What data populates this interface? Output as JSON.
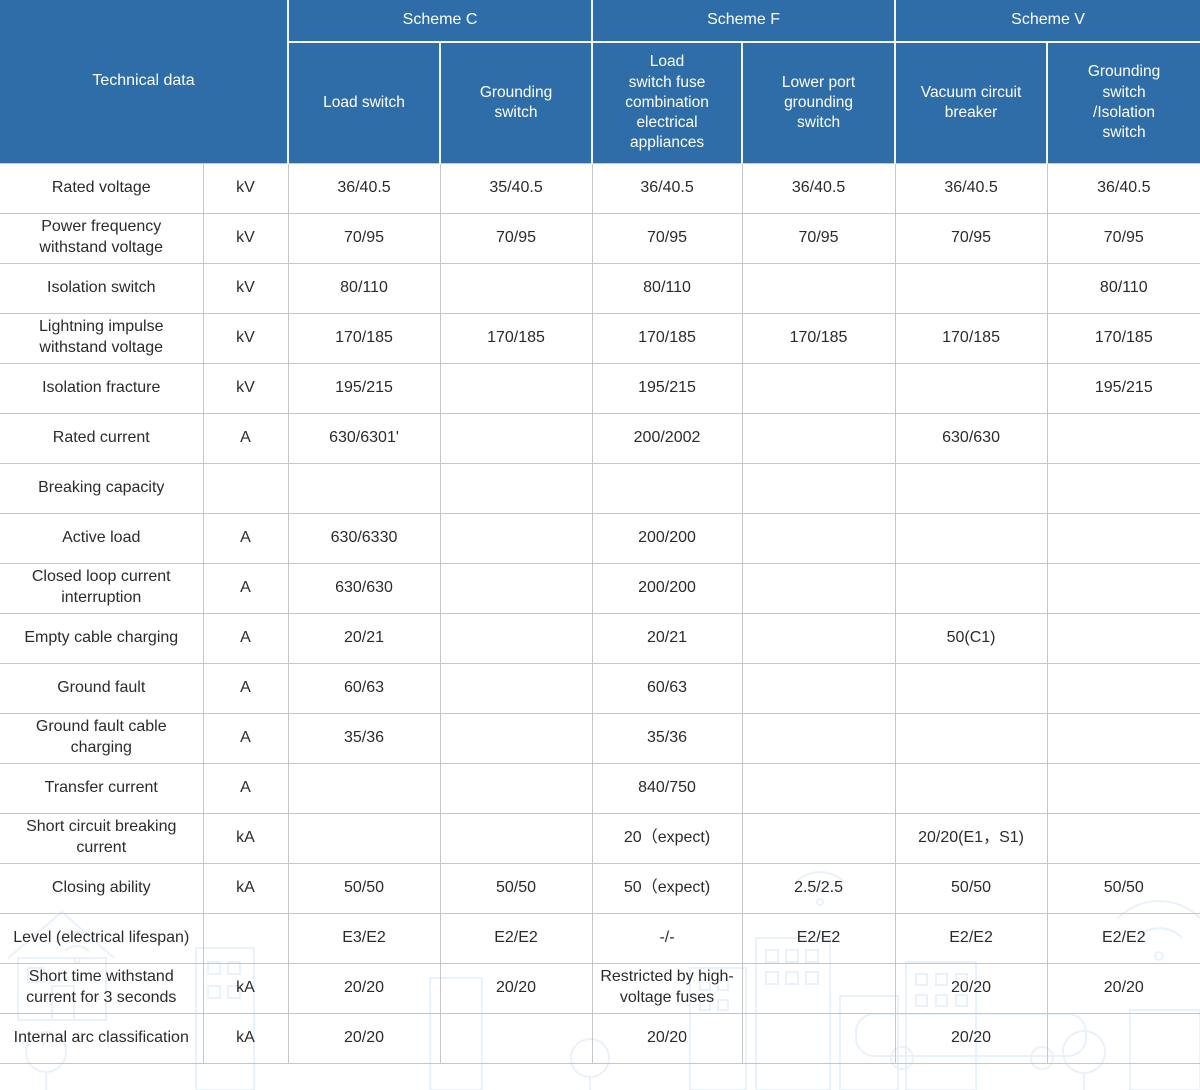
{
  "colors": {
    "header_bg": "#2e6da8",
    "header_text": "#ffffff",
    "grid_line": "#c6c6c6",
    "body_text": "#2b2b2b",
    "watermark_line": "#d8e8f6"
  },
  "table": {
    "corner_label": "Technical data",
    "scheme_groups": [
      {
        "label": "Scheme C"
      },
      {
        "label": "Scheme F"
      },
      {
        "label": "Scheme V"
      }
    ],
    "column_headers": [
      "Load switch",
      "Grounding\nswitch",
      "Load\nswitch fuse\ncombination\nelectrical\nappliances",
      "Lower port\ngrounding\nswitch",
      "Vacuum circuit\nbreaker",
      "Grounding\nswitch\n/Isolation\nswitch"
    ],
    "rows": [
      {
        "name": "Rated voltage",
        "unit": "kV",
        "values": [
          "36/40.5",
          "35/40.5",
          "36/40.5",
          "36/40.5",
          "36/40.5",
          "36/40.5"
        ]
      },
      {
        "name": "Power frequency withstand voltage",
        "unit": "kV",
        "values": [
          "70/95",
          "70/95",
          "70/95",
          "70/95",
          "70/95",
          "70/95"
        ]
      },
      {
        "name": "Isolation switch",
        "unit": "kV",
        "values": [
          "80/110",
          "",
          "80/110",
          "",
          "",
          "80/110"
        ]
      },
      {
        "name": "Lightning impulse withstand voltage",
        "unit": "kV",
        "values": [
          "170/185",
          "170/185",
          "170/185",
          "170/185",
          "170/185",
          "170/185"
        ]
      },
      {
        "name": "Isolation fracture",
        "unit": "kV",
        "values": [
          "195/215",
          "",
          "195/215",
          "",
          "",
          "195/215"
        ]
      },
      {
        "name": "Rated current",
        "unit": "A",
        "values": [
          "630/6301'",
          "",
          "200/2002",
          "",
          "630/630",
          ""
        ]
      },
      {
        "name": "Breaking capacity",
        "unit": "",
        "values": [
          "",
          "",
          "",
          "",
          "",
          ""
        ]
      },
      {
        "name": "Active load",
        "unit": "A",
        "values": [
          "630/6330",
          "",
          "200/200",
          "",
          "",
          ""
        ]
      },
      {
        "name": "Closed loop current interruption",
        "unit": "A",
        "values": [
          "630/630",
          "",
          "200/200",
          "",
          "",
          ""
        ]
      },
      {
        "name": "Empty cable charging",
        "unit": "A",
        "values": [
          "20/21",
          "",
          "20/21",
          "",
          "50(C1)",
          ""
        ]
      },
      {
        "name": "Ground fault",
        "unit": "A",
        "values": [
          "60/63",
          "",
          "60/63",
          "",
          "",
          ""
        ]
      },
      {
        "name": "Ground fault cable charging",
        "unit": "A",
        "values": [
          "35/36",
          "",
          "35/36",
          "",
          "",
          ""
        ]
      },
      {
        "name": "Transfer current",
        "unit": "A",
        "values": [
          "",
          "",
          "840/750",
          "",
          "",
          ""
        ]
      },
      {
        "name": "Short circuit breaking current",
        "unit": "kA",
        "values": [
          "",
          "",
          "20（expect)",
          "",
          "20/20(E1，S1)",
          ""
        ]
      },
      {
        "name": "Closing ability",
        "unit": "kA",
        "values": [
          "50/50",
          "50/50",
          "50（expect)",
          "2.5/2.5",
          "50/50",
          "50/50"
        ]
      },
      {
        "name": "Level (electrical lifespan)",
        "unit": "",
        "values": [
          "E3/E2",
          "E2/E2",
          "-/-",
          "E2/E2",
          "E2/E2",
          "E2/E2"
        ]
      },
      {
        "name": "Short time withstand current for 3 seconds",
        "unit": "kA",
        "values": [
          "20/20",
          "20/20",
          "Restricted by high-voltage fuses",
          "",
          "20/20",
          "20/20"
        ]
      },
      {
        "name": "Internal arc classification",
        "unit": "kA",
        "values": [
          "20/20",
          "",
          "20/20",
          "",
          "20/20",
          ""
        ]
      }
    ]
  }
}
